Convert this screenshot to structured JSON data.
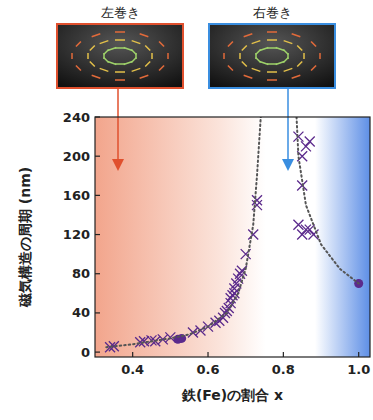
{
  "chart_data": {
    "type": "scatter",
    "xlabel": "鉄(Fe)の割合 x",
    "ylabel": "磁気構造の周期 (nm)",
    "annotations": [
      "左巻き",
      "右巻き"
    ],
    "xlim": [
      0.3,
      1.03
    ],
    "ylim": [
      -5,
      240
    ],
    "xticks": [
      0.4,
      0.6,
      0.8,
      {
        "value": 1,
        "label": "1.0"
      }
    ],
    "yticks": [
      0,
      40,
      80,
      120,
      160,
      200,
      240
    ],
    "series": [
      {
        "type": "scatter",
        "marker": "x",
        "color": "#5b2a8c",
        "x": [
          0.34,
          0.35,
          0.42,
          0.43,
          0.45,
          0.46,
          0.48,
          0.5,
          0.56,
          0.58,
          0.6,
          0.62,
          0.63,
          0.64,
          0.645,
          0.65,
          0.655,
          0.66,
          0.66,
          0.665,
          0.67,
          0.67,
          0.675,
          0.68,
          0.685,
          0.69,
          0.7,
          0.72,
          0.73,
          0.73,
          0.84,
          0.85,
          0.86,
          0.87,
          0.85,
          0.84,
          0.85,
          0.86,
          0.87,
          0.88
        ],
        "values": [
          5,
          6,
          10,
          11,
          12,
          11,
          13,
          15,
          20,
          22,
          26,
          30,
          32,
          35,
          40,
          42,
          45,
          50,
          55,
          58,
          60,
          65,
          70,
          75,
          80,
          83,
          100,
          120,
          150,
          155,
          220,
          200,
          210,
          215,
          170,
          130,
          120,
          125,
          125,
          120
        ]
      },
      {
        "type": "scatter",
        "marker": "circle",
        "color": "#5b2a8c",
        "x": [
          0.52,
          0.53,
          1.0
        ],
        "values": [
          13,
          14,
          70
        ]
      },
      {
        "type": "line",
        "line_style": "dotted",
        "color": "#555555",
        "x": [
          0.33,
          0.4,
          0.5,
          0.55,
          0.6,
          0.65,
          0.68,
          0.7,
          0.72,
          0.73,
          0.74
        ],
        "values": [
          5,
          8,
          14,
          18,
          26,
          40,
          60,
          85,
          130,
          180,
          240
        ]
      },
      {
        "type": "line",
        "line_style": "dotted",
        "color": "#555555",
        "x": [
          0.835,
          0.84,
          0.86,
          0.9,
          0.95,
          1.0
        ],
        "values": [
          240,
          200,
          150,
          110,
          85,
          70
        ]
      }
    ]
  }
}
